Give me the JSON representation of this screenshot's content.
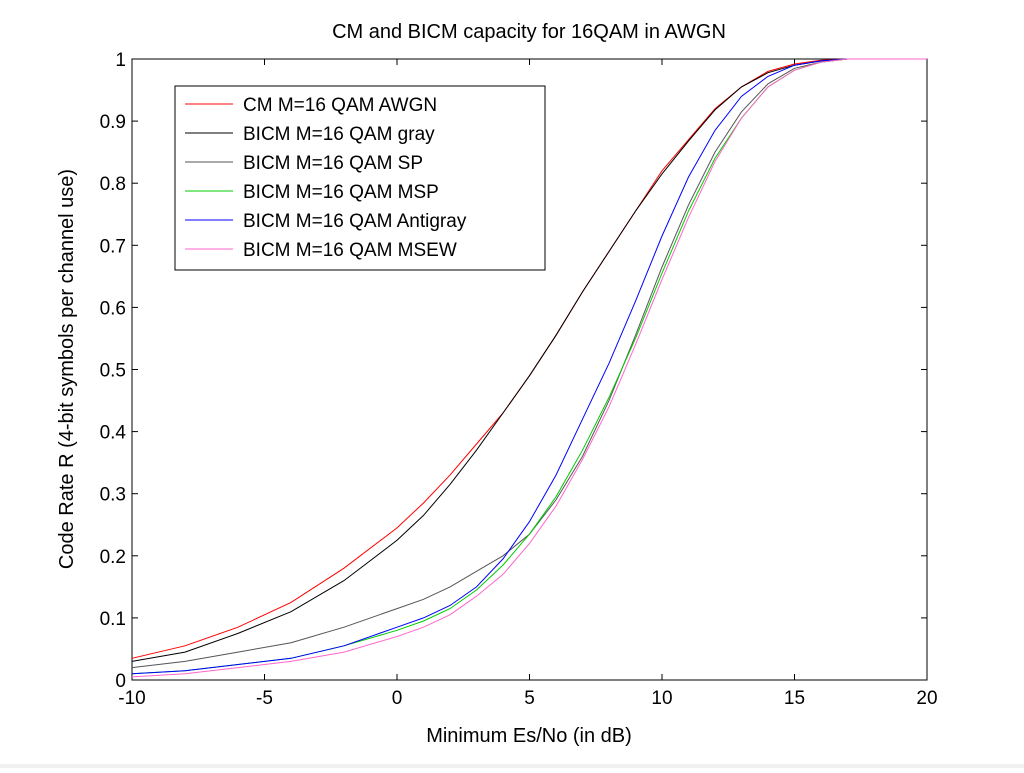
{
  "chart_data": {
    "type": "line",
    "title": "CM and BICM capacity for 16QAM in AWGN",
    "xlabel": "Minimum Es/No (in dB)",
    "ylabel": "Code Rate R (4-bit symbols per channel use)",
    "xlim": [
      -10,
      20
    ],
    "ylim": [
      0,
      1
    ],
    "x_ticks": [
      "-10",
      "-5",
      "0",
      "5",
      "10",
      "15",
      "20"
    ],
    "y_ticks": [
      "0",
      "0.1",
      "0.2",
      "0.3",
      "0.4",
      "0.5",
      "0.6",
      "0.7",
      "0.8",
      "0.9",
      "1"
    ],
    "grid": false,
    "legend_position": "top-left",
    "x": [
      -10,
      -8,
      -6,
      -4,
      -2,
      0,
      1,
      2,
      3,
      4,
      5,
      6,
      7,
      8,
      9,
      10,
      11,
      12,
      13,
      14,
      15,
      16,
      17,
      18,
      20
    ],
    "series": [
      {
        "name": "CM M=16 QAM AWGN",
        "color": "#ff0000",
        "values": [
          0.035,
          0.055,
          0.085,
          0.125,
          0.18,
          0.245,
          0.285,
          0.33,
          0.38,
          0.43,
          0.49,
          0.555,
          0.625,
          0.69,
          0.755,
          0.82,
          0.87,
          0.92,
          0.955,
          0.98,
          0.992,
          0.998,
          1.0,
          1.0,
          1.0
        ]
      },
      {
        "name": "BICM M=16 QAM gray",
        "color": "#000000",
        "values": [
          0.03,
          0.045,
          0.075,
          0.11,
          0.16,
          0.225,
          0.265,
          0.315,
          0.37,
          0.43,
          0.49,
          0.555,
          0.625,
          0.69,
          0.755,
          0.815,
          0.868,
          0.918,
          0.955,
          0.978,
          0.99,
          0.997,
          1.0,
          1.0,
          1.0
        ]
      },
      {
        "name": "BICM M=16 QAM SP",
        "color": "#555555",
        "values": [
          0.02,
          0.03,
          0.045,
          0.06,
          0.085,
          0.115,
          0.13,
          0.15,
          0.175,
          0.2,
          0.235,
          0.29,
          0.36,
          0.45,
          0.555,
          0.665,
          0.765,
          0.85,
          0.915,
          0.96,
          0.985,
          0.995,
          1.0,
          1.0,
          1.0
        ]
      },
      {
        "name": "BICM M=16 QAM MSP",
        "color": "#00cc00",
        "values": [
          0.01,
          0.015,
          0.025,
          0.035,
          0.055,
          0.08,
          0.095,
          0.115,
          0.145,
          0.185,
          0.235,
          0.295,
          0.37,
          0.455,
          0.55,
          0.655,
          0.755,
          0.84,
          0.905,
          0.955,
          0.982,
          0.995,
          1.0,
          1.0,
          1.0
        ]
      },
      {
        "name": "BICM M=16 QAM Antigray",
        "color": "#0000ff",
        "values": [
          0.01,
          0.015,
          0.025,
          0.035,
          0.055,
          0.085,
          0.1,
          0.12,
          0.15,
          0.195,
          0.255,
          0.33,
          0.42,
          0.51,
          0.61,
          0.715,
          0.81,
          0.885,
          0.94,
          0.972,
          0.99,
          0.997,
          1.0,
          1.0,
          1.0
        ]
      },
      {
        "name": "BICM M=16 QAM MSEW",
        "color": "#ff66cc",
        "values": [
          0.005,
          0.01,
          0.02,
          0.03,
          0.045,
          0.07,
          0.085,
          0.105,
          0.135,
          0.17,
          0.22,
          0.28,
          0.355,
          0.44,
          0.54,
          0.645,
          0.745,
          0.835,
          0.905,
          0.955,
          0.982,
          0.995,
          1.0,
          1.0,
          1.0
        ]
      }
    ]
  }
}
